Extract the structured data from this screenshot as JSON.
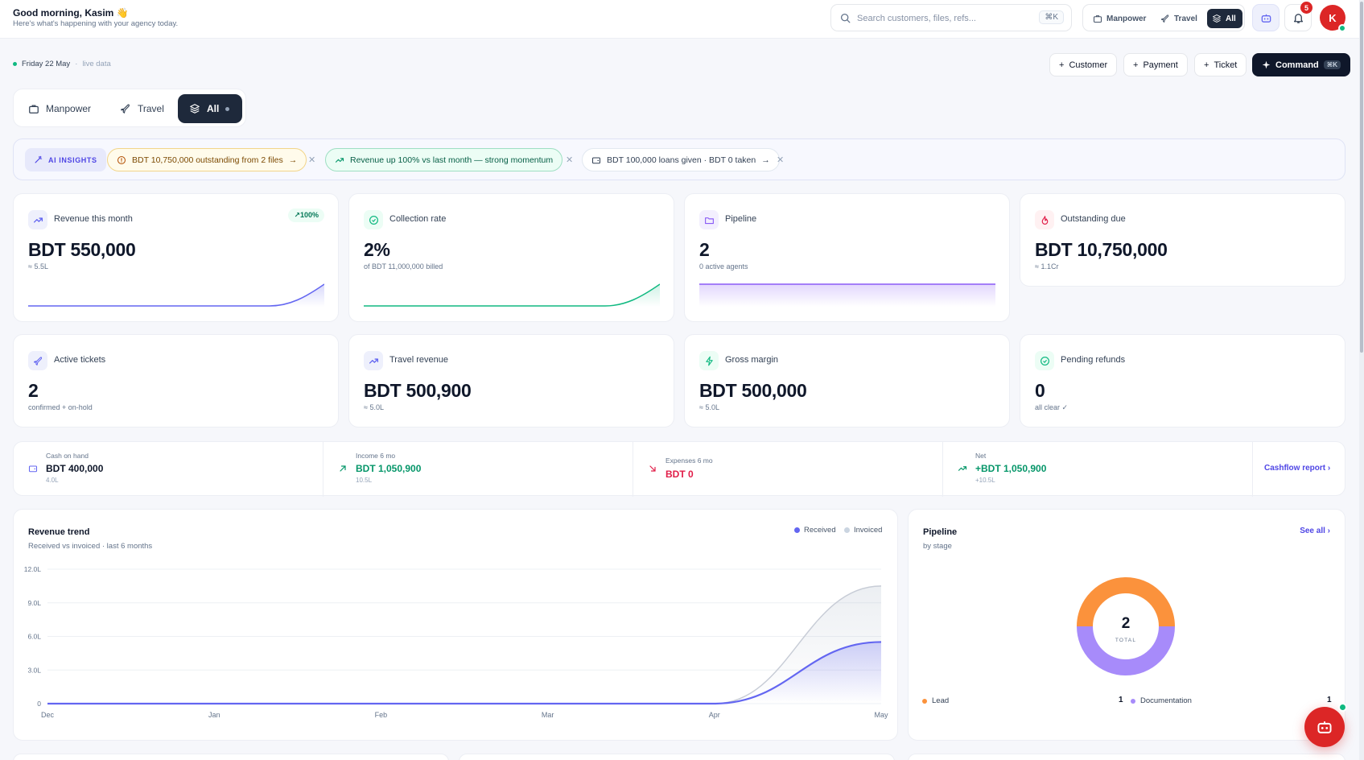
{
  "header": {
    "greeting": "Good morning, Kasim 👋",
    "subtitle": "Here's what's happening with your agency today.",
    "search_placeholder": "Search customers, files, refs...",
    "search_shortcut": "⌘K",
    "modes": [
      {
        "label": "Manpower",
        "icon": "briefcase-icon",
        "active": false
      },
      {
        "label": "Travel",
        "icon": "plane-icon",
        "active": false
      },
      {
        "label": "All",
        "icon": "layers-icon",
        "active": true
      }
    ],
    "notification_count": "5",
    "avatar_initial": "K"
  },
  "status": {
    "date": "Friday 22 May",
    "live": "live data"
  },
  "quick_actions": [
    {
      "label": "Customer",
      "icon": "plus-icon"
    },
    {
      "label": "Payment",
      "icon": "plus-icon"
    },
    {
      "label": "Ticket",
      "icon": "plus-icon"
    },
    {
      "label": "Command",
      "icon": "sparkle-icon",
      "shortcut": "⌘K"
    }
  ],
  "tabs": [
    {
      "label": "Manpower",
      "icon": "briefcase-icon"
    },
    {
      "label": "Travel",
      "icon": "plane-icon"
    },
    {
      "label": "All",
      "icon": "layers-icon",
      "active": true
    }
  ],
  "insights": {
    "label": "AI INSIGHTS",
    "chips": [
      {
        "text": "BDT 10,750,000 outstanding from 2 files",
        "tone": "warning",
        "icon": "alert-circle-icon"
      },
      {
        "text": "Revenue up 100% vs last month — strong momentum",
        "tone": "positive",
        "icon": "trending-up-icon"
      },
      {
        "text": "BDT 100,000 loans given · BDT 0 taken",
        "tone": "neutral",
        "icon": "wallet-icon"
      }
    ]
  },
  "kpis": [
    {
      "label": "Revenue this month",
      "value": "BDT 550,000",
      "sub": "≈ 5.5L",
      "trend": "↗100%",
      "icon": "trending-up-icon",
      "color": "#6366f1"
    },
    {
      "label": "Collection rate",
      "value": "2%",
      "sub": "of BDT 11,000,000 billed",
      "icon": "check-circle-icon",
      "color": "#10b981"
    },
    {
      "label": "Pipeline",
      "value": "2",
      "sub": "0 active agents",
      "icon": "folder-icon",
      "color": "#8b5cf6"
    },
    {
      "label": "Outstanding due",
      "value": "BDT 10,750,000",
      "sub": "≈ 1.1Cr",
      "icon": "flame-icon",
      "color": "#e11d48"
    },
    {
      "label": "Active tickets",
      "value": "2",
      "sub": "confirmed + on-hold",
      "icon": "plane-icon",
      "color": "#6366f1"
    },
    {
      "label": "Travel revenue",
      "value": "BDT 500,900",
      "sub": "≈ 5.0L",
      "icon": "trending-up-icon",
      "color": "#6366f1"
    },
    {
      "label": "Gross margin",
      "value": "BDT 500,000",
      "sub": "≈ 5.0L",
      "icon": "bolt-icon",
      "color": "#10b981"
    },
    {
      "label": "Pending refunds",
      "value": "0",
      "sub": "all clear ✓",
      "icon": "check-circle-icon",
      "color": "#10b981"
    }
  ],
  "cashflow": {
    "cells": [
      {
        "label": "Cash on hand",
        "value": "BDT 400,000",
        "sub": "4.0L",
        "icon": "wallet-icon",
        "color": "#0f172a"
      },
      {
        "label": "Income 6 mo",
        "value": "BDT 1,050,900",
        "sub": "10.5L",
        "icon": "arrow-up-right-icon",
        "color": "#059669"
      },
      {
        "label": "Expenses 6 mo",
        "value": "BDT 0",
        "sub": "",
        "icon": "arrow-down-right-icon",
        "color": "#e11d48"
      },
      {
        "label": "Net",
        "value": "+BDT 1,050,900",
        "sub": "+10.5L",
        "icon": "trending-up-icon",
        "color": "#059669"
      }
    ],
    "link": "Cashflow report ›"
  },
  "revenue_chart": {
    "title": "Revenue trend",
    "subtitle": "Received vs invoiced · last 6 months",
    "legend": [
      {
        "name": "Received",
        "color": "#6366f1"
      },
      {
        "name": "Invoiced",
        "color": "#cbd5e1"
      }
    ]
  },
  "pipeline_chart": {
    "title": "Pipeline",
    "subtitle": "by stage",
    "see_all": "See all ›",
    "total": "2",
    "total_label": "TOTAL",
    "stages": [
      {
        "name": "Lead",
        "count": "1",
        "color": "#fb923c"
      },
      {
        "name": "Documentation",
        "count": "1",
        "color": "#a78bfa"
      }
    ]
  },
  "chart_data": [
    {
      "type": "area",
      "title": "Revenue trend",
      "x": [
        "Dec",
        "Jan",
        "Feb",
        "Mar",
        "Apr",
        "May"
      ],
      "y_ticks": [
        "0",
        "3.0L",
        "6.0L",
        "9.0L",
        "12.0L"
      ],
      "ylim": [
        0,
        12
      ],
      "series": [
        {
          "name": "Received",
          "values": [
            0,
            0,
            0,
            0,
            0,
            5.5
          ]
        },
        {
          "name": "Invoiced",
          "values": [
            0,
            0,
            0,
            0,
            0,
            10.5
          ]
        }
      ],
      "legend": "top-right",
      "grid": true
    },
    {
      "type": "pie",
      "title": "Pipeline",
      "categories": [
        "Lead",
        "Documentation"
      ],
      "values": [
        1,
        1
      ]
    }
  ]
}
